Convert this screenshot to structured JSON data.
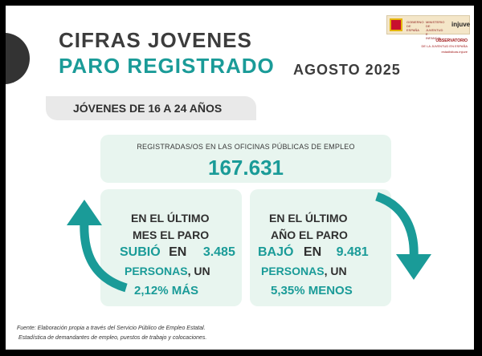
{
  "header": {
    "title_line1": "CIFRAS JOVENES",
    "title_line2": "PARO REGISTRADO",
    "period": "AGOSTO 2025"
  },
  "logo": {
    "gov_text": "GOBIERNO DE ESPAÑA",
    "ministry_text": "MINISTERIO DE JUVENTUD E INFANCIA",
    "brand": "injuve",
    "observatory": "OBSERVATORIO",
    "observatory_sub": "DE LA JUVENTUD EN ESPAÑA",
    "website": "estadisticas.injuve"
  },
  "age_band": {
    "label": "JÓVENES DE 16 A 24 AÑOS"
  },
  "registered": {
    "label": "REGISTRADAS/OS EN LAS OFICINAS PÚBLICAS DE EMPLEO",
    "value": "167.631"
  },
  "monthly": {
    "line1": "EN EL ÚLTIMO",
    "line2": "MES EL PARO",
    "verb": "SUBIÓ",
    "prep": "EN",
    "amount": "3.485",
    "people": "PERSONAS",
    "comma_un": ", UN",
    "percent": "2,12% MÁS"
  },
  "annual": {
    "line1": "EN EL ÚLTIMO",
    "line2": "AÑO EL PARO",
    "verb": "BAJÓ",
    "prep": "EN",
    "amount": "9.481",
    "people": "PERSONAS",
    "comma_un": ", UN",
    "percent": "5,35% MENOS"
  },
  "source": {
    "line1": "Fuente: Elaboración propia a través del Servicio Público de Empleo Estatal.",
    "line2": "Estadística de demandantes de empleo, puestos de trabajo y colocaciones."
  },
  "colors": {
    "teal": "#1a9b98",
    "dark": "#3c3c3c",
    "panel": "#e8f5ef"
  },
  "icons": [
    "up-arrow-icon",
    "down-arrow-icon"
  ]
}
